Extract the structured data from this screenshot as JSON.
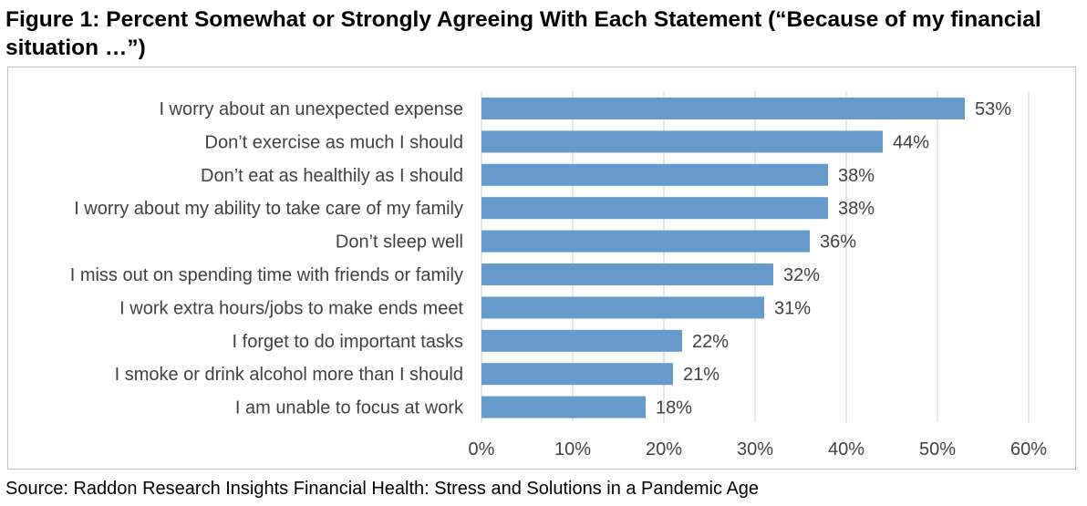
{
  "title": {
    "lead": "Figure 1:",
    "text": "Percent Somewhat or Strongly Agreeing With Each Statement (“Because of my financial situation …”)"
  },
  "source": "Source: Raddon Research Insights Financial Health: Stress and Solutions in a Pandemic Age",
  "colors": {
    "bar": "#6699cc",
    "grid": "#d9d9d9",
    "text": "#404040"
  },
  "chart_data": {
    "type": "bar",
    "orientation": "horizontal",
    "categories": [
      "I worry about an unexpected expense",
      "Don’t exercise as much I should",
      "Don’t eat as healthily as I should",
      "I worry about my ability to take care of my family",
      "Don’t sleep well",
      "I miss out on spending time with friends or family",
      "I work extra hours/jobs to make ends meet",
      "I forget to do important tasks",
      "I smoke or drink alcohol more than I should",
      "I am unable to focus at work"
    ],
    "values": [
      53,
      44,
      38,
      38,
      36,
      32,
      31,
      22,
      21,
      18
    ],
    "value_labels": [
      "53%",
      "44%",
      "38%",
      "38%",
      "36%",
      "32%",
      "31%",
      "22%",
      "21%",
      "18%"
    ],
    "xlim": [
      0,
      60
    ],
    "xticks": [
      0,
      10,
      20,
      30,
      40,
      50,
      60
    ],
    "xtick_labels": [
      "0%",
      "10%",
      "20%",
      "30%",
      "40%",
      "50%",
      "60%"
    ],
    "grid": "vertical",
    "legend": "none"
  }
}
